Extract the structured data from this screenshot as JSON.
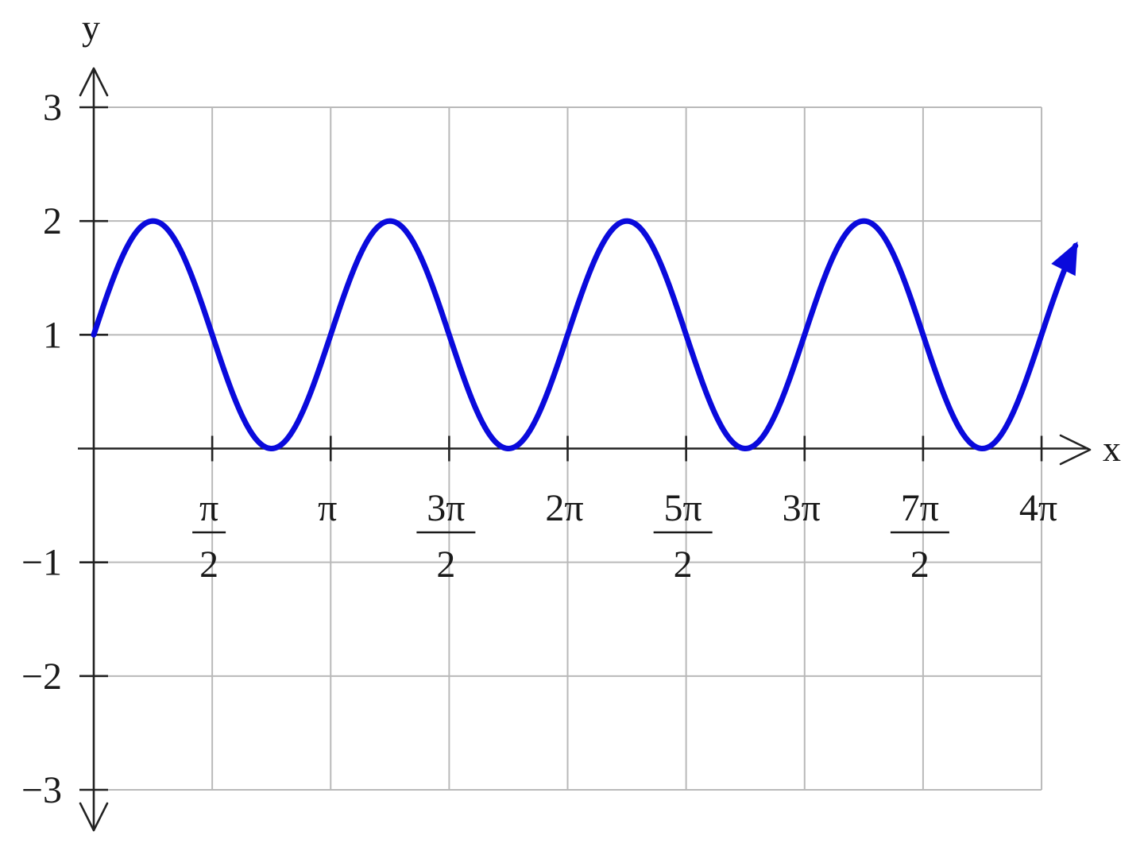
{
  "chart_data": {
    "type": "line",
    "title": "",
    "xlabel": "x",
    "ylabel": "y",
    "xlim": [
      0,
      12.566
    ],
    "ylim": [
      -3,
      3
    ],
    "grid": true,
    "colors": {
      "curve": "#0a0adc",
      "grid": "#b9b9b9",
      "axes": "#222222"
    },
    "series": [
      {
        "function": "y = 1 + sin(2x)",
        "x": [
          0,
          0.3927,
          0.7854,
          1.1781,
          1.5708,
          1.9635,
          2.3562,
          2.7489,
          3.1416,
          3.5343,
          3.927,
          4.3197,
          4.7124,
          5.1051,
          5.4978,
          5.8905,
          6.2832,
          6.6759,
          7.0686,
          7.4613,
          7.854,
          8.2467,
          8.6394,
          9.0321,
          9.4248,
          9.8175,
          10.2102,
          10.6029,
          10.9956,
          11.3883,
          11.781,
          12.1737,
          12.5664
        ],
        "y": [
          1,
          1.707,
          2,
          1.707,
          1,
          0.293,
          0,
          0.293,
          1,
          1.707,
          2,
          1.707,
          1,
          0.293,
          0,
          0.293,
          1,
          1.707,
          2,
          1.707,
          1,
          0.293,
          0,
          0.293,
          1,
          1.707,
          2,
          1.707,
          1,
          0.293,
          0,
          0.293,
          1
        ]
      }
    ],
    "x_ticks": [
      {
        "value": 1.5708,
        "num": "π",
        "den": "2"
      },
      {
        "value": 3.1416,
        "label": "π"
      },
      {
        "value": 4.7124,
        "num": "3π",
        "den": "2"
      },
      {
        "value": 6.2832,
        "label": "2π"
      },
      {
        "value": 7.854,
        "num": "5π",
        "den": "2"
      },
      {
        "value": 9.4248,
        "label": "3π"
      },
      {
        "value": 10.9956,
        "num": "7π",
        "den": "2"
      },
      {
        "value": 12.5664,
        "label": "4π"
      }
    ],
    "y_ticks": [
      {
        "value": 3,
        "label": "3"
      },
      {
        "value": 2,
        "label": "2"
      },
      {
        "value": 1,
        "label": "1"
      },
      {
        "value": -1,
        "label": "−1"
      },
      {
        "value": -2,
        "label": "−2"
      },
      {
        "value": -3,
        "label": "−3"
      }
    ]
  }
}
